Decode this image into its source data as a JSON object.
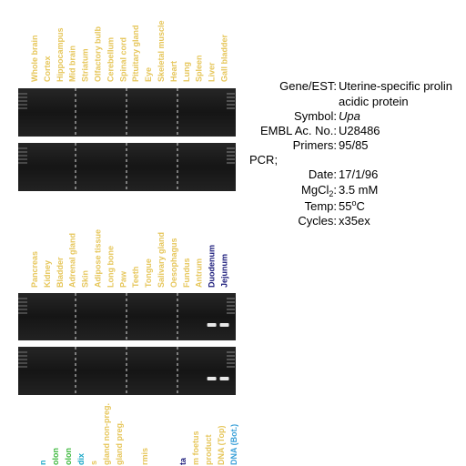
{
  "lanes_top": [
    "Whole brain",
    "Cortex",
    "Hippocampus",
    "Mid brain",
    "Striatum",
    "Olfactory bulb",
    "Cerebellum",
    "Spinal cord",
    "Pituitary gland",
    "Eye",
    "Skeletal muscle",
    "Heart",
    "Lung",
    "Spleen",
    "Liver",
    "Gall bladder"
  ],
  "lanes_middle": [
    {
      "text": "Pancreas",
      "color": "#e6c65a"
    },
    {
      "text": "Kidney",
      "color": "#e6c65a"
    },
    {
      "text": "Bladder",
      "color": "#e6c65a"
    },
    {
      "text": "Adrenal gland",
      "color": "#e6c65a"
    },
    {
      "text": "Skin",
      "color": "#e6c65a"
    },
    {
      "text": "Adipose tissue",
      "color": "#e6c65a"
    },
    {
      "text": "Long bone",
      "color": "#e6c65a"
    },
    {
      "text": "Paw",
      "color": "#e6c65a"
    },
    {
      "text": "Teeth",
      "color": "#e6c65a"
    },
    {
      "text": "Tongue",
      "color": "#e6c65a"
    },
    {
      "text": "Salivary gland",
      "color": "#e6c65a"
    },
    {
      "text": "Oesophagus",
      "color": "#e6c65a"
    },
    {
      "text": "Fundus",
      "color": "#e6c65a"
    },
    {
      "text": "Antrum",
      "color": "#e6c65a"
    },
    {
      "text": "Duodenum",
      "color": "#1a1a7a"
    },
    {
      "text": "Jejunum",
      "color": "#1a1a7a"
    }
  ],
  "lanes_bottom": [
    {
      "text": "n",
      "color": "#1aa8c8"
    },
    {
      "text": "olon",
      "color": "#3cb83c"
    },
    {
      "text": "olon",
      "color": "#3cb83c"
    },
    {
      "text": "dix",
      "color": "#1aa8c8"
    },
    {
      "text": "s",
      "color": "#e6c65a"
    },
    {
      "text": "gland non-preg.",
      "color": "#e6c65a"
    },
    {
      "text": "gland preg.",
      "color": "#e6c65a"
    },
    {
      "text": "rmis",
      "color": "#e6c65a"
    },
    {
      "text": "ta",
      "color": "#1a1a7a"
    },
    {
      "text": "m foetus",
      "color": "#e6c65a"
    },
    {
      "text": "product",
      "color": "#e6c65a"
    },
    {
      "text": "DNA (Top)",
      "color": "#e6c65a"
    },
    {
      "text": "DNA (Bot.)",
      "color": "#3aa0d8"
    }
  ],
  "info": {
    "gene_label": "Gene/EST:",
    "gene_value": "Uterine-specific prolin",
    "gene_value_2": "acidic protein",
    "symbol_label": "Symbol:",
    "symbol_value": "Upa",
    "embl_label": "EMBL Ac. No.:",
    "embl_value": "U28486",
    "primers_label": "Primers:",
    "primers_value": "95/85",
    "pcr_label": "PCR;",
    "date_label": "Date:",
    "date_value": "17/1/96",
    "mgcl_label": "MgCl",
    "mgcl_sub": "2",
    "mgcl_colon": ":",
    "mgcl_value": "3.5 mM",
    "temp_label": "Temp:",
    "temp_value": "55",
    "temp_sup": "o",
    "temp_unit": "C",
    "cycles_label": "Cycles:",
    "cycles_value": "x35ex"
  }
}
